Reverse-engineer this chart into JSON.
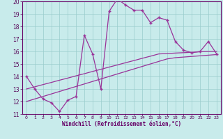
{
  "xlabel": "Windchill (Refroidissement éolien,°C)",
  "x_data": [
    0,
    1,
    2,
    3,
    4,
    5,
    6,
    7,
    8,
    9,
    10,
    11,
    12,
    13,
    14,
    15,
    16,
    17,
    18,
    19,
    20,
    21,
    22,
    23
  ],
  "y_zigzag": [
    14.0,
    13.0,
    12.2,
    11.9,
    11.2,
    12.1,
    12.4,
    17.3,
    15.8,
    13.0,
    19.2,
    20.2,
    19.7,
    19.3,
    19.3,
    18.3,
    18.7,
    18.5,
    16.8,
    16.1,
    15.9,
    16.0,
    16.8,
    15.8
  ],
  "y_line_upper": [
    13.0,
    13.17,
    13.35,
    13.52,
    13.7,
    13.87,
    14.05,
    14.22,
    14.4,
    14.57,
    14.75,
    14.92,
    15.1,
    15.27,
    15.45,
    15.62,
    15.8,
    15.83,
    15.87,
    15.9,
    15.93,
    15.97,
    16.0,
    16.0
  ],
  "y_line_lower": [
    12.0,
    12.2,
    12.4,
    12.6,
    12.8,
    13.0,
    13.2,
    13.4,
    13.6,
    13.8,
    14.0,
    14.2,
    14.4,
    14.6,
    14.8,
    15.0,
    15.2,
    15.4,
    15.5,
    15.55,
    15.6,
    15.65,
    15.7,
    15.75
  ],
  "ylim": [
    11,
    20
  ],
  "xlim": [
    -0.5,
    23.5
  ],
  "yticks": [
    11,
    12,
    13,
    14,
    15,
    16,
    17,
    18,
    19,
    20
  ],
  "xticks": [
    0,
    1,
    2,
    3,
    4,
    5,
    6,
    7,
    8,
    9,
    10,
    11,
    12,
    13,
    14,
    15,
    16,
    17,
    18,
    19,
    20,
    21,
    22,
    23
  ],
  "line_color": "#993399",
  "bg_color": "#c8ebeb",
  "grid_color": "#99cccc",
  "spine_color": "#660066",
  "xlabel_color": "#660066",
  "tick_label_color": "#550055"
}
